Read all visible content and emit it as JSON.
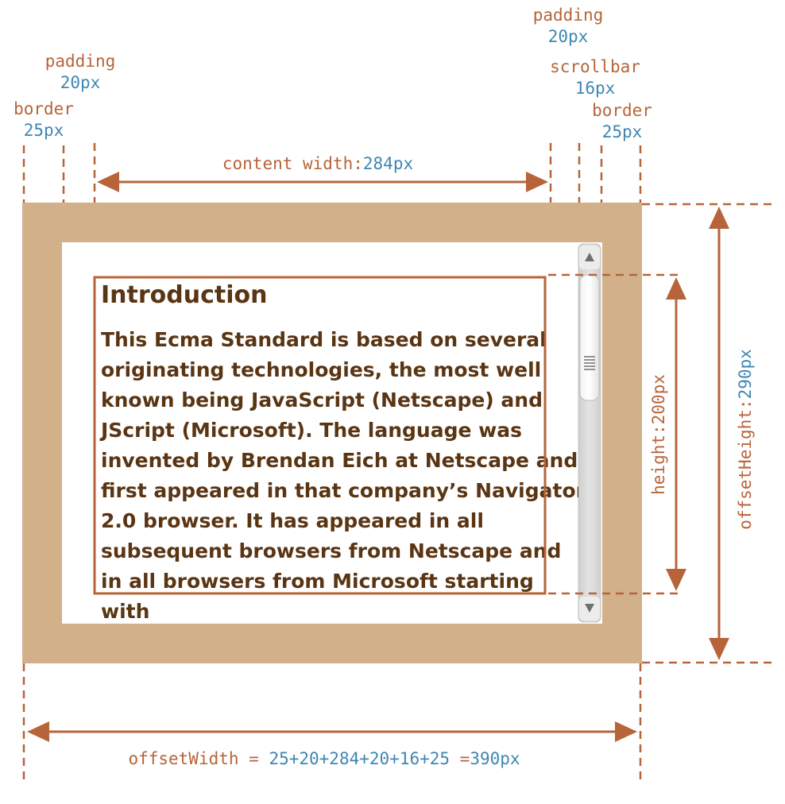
{
  "labels": {
    "border_left": "border",
    "border_left_value": "25px",
    "padding_left": "padding",
    "padding_left_value": "20px",
    "padding_right": "padding",
    "padding_right_value": "20px",
    "scrollbar": "scrollbar",
    "scrollbar_value": "16px",
    "border_right": "border",
    "border_right_value": "25px",
    "content_width": "content width:",
    "content_width_value": "284px",
    "height": "height:200px",
    "offset_height_label": "offsetHeight:",
    "offset_height_value": "290px",
    "offset_width_label": "offsetWidth = ",
    "offset_width_sum": "25+20+284+20+16+25",
    "offset_width_eq": " =",
    "offset_width_value": "390px"
  },
  "content": {
    "heading": "Introduction",
    "lines": [
      "This Ecma Standard is based on several",
      "originating technologies, the most well",
      "known being JavaScript (Netscape) and",
      "JScript (Microsoft). The language was",
      "invented by Brendan Eich at Netscape and",
      "first appeared in that company’s Navigator",
      "2.0 browser. It has appeared in all",
      "subsequent browsers from Netscape and",
      "in all browsers from Microsoft starting",
      "with"
    ]
  },
  "colors": {
    "border_fill": "#d2b08a",
    "annotation": "#b7643a",
    "value": "#3f86b2",
    "text": "#5a3513"
  },
  "icons": [
    "scroll-up-arrow-icon",
    "scroll-down-arrow-icon",
    "scroll-grip-icon"
  ]
}
